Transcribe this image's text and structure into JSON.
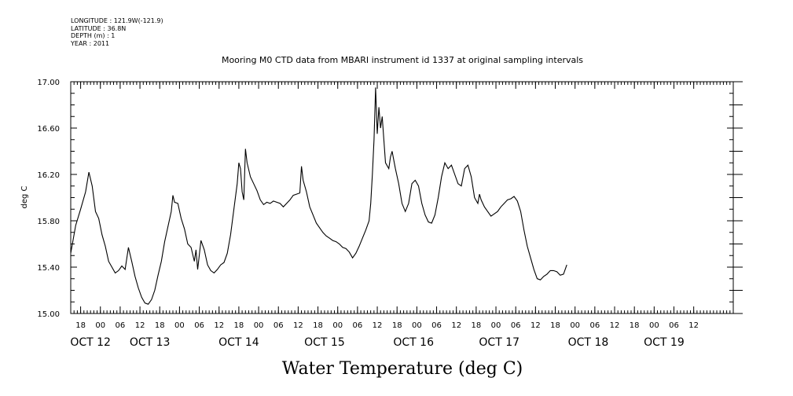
{
  "header": {
    "lines": [
      "LONGITUDE : 121.9W(-121.9)",
      "LATITUDE : 36.8N",
      "DEPTH (m) : 1",
      "YEAR : 2011"
    ]
  },
  "chart_data": {
    "type": "line",
    "title": "Mooring M0 CTD data from MBARI instrument id 1337 at original sampling intervals",
    "xlabel": "Water Temperature (deg C)",
    "ylabel": "deg C",
    "ylim": [
      15.0,
      17.0
    ],
    "yticks": [
      "15.00",
      "15.40",
      "15.80",
      "16.20",
      "16.60",
      "17.00"
    ],
    "xlim": [
      -9,
      192
    ],
    "x_unit": "hours since Oct 12 00:00, 2011",
    "hour_ticks": [
      {
        "x": -6,
        "label": "18"
      },
      {
        "x": 0,
        "label": "00"
      },
      {
        "x": 6,
        "label": "06"
      },
      {
        "x": 12,
        "label": "12"
      },
      {
        "x": 18,
        "label": "18"
      },
      {
        "x": 24,
        "label": "00"
      },
      {
        "x": 30,
        "label": "06"
      },
      {
        "x": 36,
        "label": "12"
      },
      {
        "x": 42,
        "label": "18"
      },
      {
        "x": 48,
        "label": "00"
      },
      {
        "x": 54,
        "label": "06"
      },
      {
        "x": 60,
        "label": "12"
      },
      {
        "x": 66,
        "label": "18"
      },
      {
        "x": 72,
        "label": "00"
      },
      {
        "x": 78,
        "label": "06"
      },
      {
        "x": 84,
        "label": "12"
      },
      {
        "x": 90,
        "label": "18"
      },
      {
        "x": 96,
        "label": "00"
      },
      {
        "x": 102,
        "label": "06"
      },
      {
        "x": 108,
        "label": "12"
      },
      {
        "x": 114,
        "label": "18"
      },
      {
        "x": 120,
        "label": "00"
      },
      {
        "x": 126,
        "label": "06"
      },
      {
        "x": 132,
        "label": "12"
      },
      {
        "x": 138,
        "label": "18"
      },
      {
        "x": 144,
        "label": "00"
      },
      {
        "x": 150,
        "label": "06"
      },
      {
        "x": 156,
        "label": "12"
      },
      {
        "x": 162,
        "label": "18"
      },
      {
        "x": 168,
        "label": "00"
      },
      {
        "x": 174,
        "label": "06"
      },
      {
        "x": 180,
        "label": "12"
      }
    ],
    "day_labels": [
      {
        "x": -3,
        "label": "OCT 12"
      },
      {
        "x": 15,
        "label": "OCT 13"
      },
      {
        "x": 42,
        "label": "OCT 14"
      },
      {
        "x": 68,
        "label": "OCT 15"
      },
      {
        "x": 95,
        "label": "OCT 16"
      },
      {
        "x": 121,
        "label": "OCT 17"
      },
      {
        "x": 148,
        "label": "OCT 18"
      },
      {
        "x": 171,
        "label": "OCT 19"
      }
    ],
    "series": [
      {
        "points": [
          [
            -9.0,
            15.52
          ],
          [
            -7.5,
            15.76
          ],
          [
            -6.0,
            15.9
          ],
          [
            -4.5,
            16.05
          ],
          [
            -3.5,
            16.22
          ],
          [
            -2.5,
            16.1
          ],
          [
            -1.5,
            15.88
          ],
          [
            -0.5,
            15.82
          ],
          [
            0.5,
            15.68
          ],
          [
            1.5,
            15.58
          ],
          [
            2.5,
            15.45
          ],
          [
            3.5,
            15.4
          ],
          [
            4.5,
            15.35
          ],
          [
            5.5,
            15.37
          ],
          [
            6.5,
            15.41
          ],
          [
            7.5,
            15.38
          ],
          [
            8.5,
            15.57
          ],
          [
            9.5,
            15.45
          ],
          [
            10.5,
            15.32
          ],
          [
            11.5,
            15.22
          ],
          [
            12.5,
            15.14
          ],
          [
            13.5,
            15.09
          ],
          [
            14.5,
            15.08
          ],
          [
            15.5,
            15.12
          ],
          [
            16.5,
            15.2
          ],
          [
            17.5,
            15.33
          ],
          [
            18.5,
            15.45
          ],
          [
            19.5,
            15.62
          ],
          [
            20.5,
            15.75
          ],
          [
            21.5,
            15.88
          ],
          [
            22.0,
            16.02
          ],
          [
            22.5,
            15.96
          ],
          [
            23.5,
            15.95
          ],
          [
            24.5,
            15.82
          ],
          [
            25.5,
            15.73
          ],
          [
            26.5,
            15.6
          ],
          [
            27.5,
            15.57
          ],
          [
            28.5,
            15.45
          ],
          [
            29.0,
            15.55
          ],
          [
            29.5,
            15.38
          ],
          [
            30.5,
            15.63
          ],
          [
            31.5,
            15.55
          ],
          [
            32.5,
            15.42
          ],
          [
            33.5,
            15.37
          ],
          [
            34.5,
            15.35
          ],
          [
            35.5,
            15.38
          ],
          [
            36.5,
            15.42
          ],
          [
            37.5,
            15.44
          ],
          [
            38.5,
            15.52
          ],
          [
            39.5,
            15.68
          ],
          [
            40.5,
            15.9
          ],
          [
            41.5,
            16.12
          ],
          [
            42.0,
            16.3
          ],
          [
            42.5,
            16.25
          ],
          [
            43.0,
            16.05
          ],
          [
            43.5,
            15.98
          ],
          [
            44.0,
            16.42
          ],
          [
            44.5,
            16.3
          ],
          [
            45.5,
            16.18
          ],
          [
            46.5,
            16.12
          ],
          [
            47.5,
            16.06
          ],
          [
            48.5,
            15.98
          ],
          [
            49.5,
            15.94
          ],
          [
            50.5,
            15.96
          ],
          [
            51.5,
            15.95
          ],
          [
            52.5,
            15.97
          ],
          [
            53.5,
            15.96
          ],
          [
            54.5,
            15.95
          ],
          [
            55.5,
            15.92
          ],
          [
            56.5,
            15.95
          ],
          [
            57.5,
            15.98
          ],
          [
            58.5,
            16.02
          ],
          [
            59.5,
            16.03
          ],
          [
            60.5,
            16.04
          ],
          [
            61.0,
            16.27
          ],
          [
            61.5,
            16.15
          ],
          [
            62.5,
            16.05
          ],
          [
            63.5,
            15.92
          ],
          [
            64.5,
            15.85
          ],
          [
            65.5,
            15.78
          ],
          [
            66.5,
            15.74
          ],
          [
            67.5,
            15.7
          ],
          [
            68.5,
            15.67
          ],
          [
            69.5,
            15.65
          ],
          [
            70.5,
            15.63
          ],
          [
            71.5,
            15.62
          ],
          [
            72.5,
            15.6
          ],
          [
            73.5,
            15.57
          ],
          [
            74.5,
            15.56
          ],
          [
            75.5,
            15.53
          ],
          [
            76.5,
            15.48
          ],
          [
            77.5,
            15.52
          ],
          [
            78.5,
            15.58
          ],
          [
            79.5,
            15.65
          ],
          [
            80.5,
            15.72
          ],
          [
            81.5,
            15.8
          ],
          [
            82.0,
            15.95
          ],
          [
            82.5,
            16.2
          ],
          [
            83.0,
            16.5
          ],
          [
            83.5,
            16.95
          ],
          [
            84.0,
            16.55
          ],
          [
            84.5,
            16.78
          ],
          [
            85.0,
            16.6
          ],
          [
            85.5,
            16.7
          ],
          [
            86.0,
            16.5
          ],
          [
            86.5,
            16.3
          ],
          [
            87.5,
            16.25
          ],
          [
            88.0,
            16.35
          ],
          [
            88.5,
            16.4
          ],
          [
            89.5,
            16.25
          ],
          [
            90.5,
            16.12
          ],
          [
            91.5,
            15.95
          ],
          [
            92.5,
            15.88
          ],
          [
            93.5,
            15.95
          ],
          [
            94.5,
            16.12
          ],
          [
            95.5,
            16.15
          ],
          [
            96.5,
            16.1
          ],
          [
            97.5,
            15.95
          ],
          [
            98.5,
            15.85
          ],
          [
            99.5,
            15.79
          ],
          [
            100.5,
            15.78
          ],
          [
            101.5,
            15.85
          ],
          [
            102.5,
            16.0
          ],
          [
            103.5,
            16.18
          ],
          [
            104.5,
            16.3
          ],
          [
            105.5,
            16.25
          ],
          [
            106.5,
            16.28
          ],
          [
            107.5,
            16.2
          ],
          [
            108.5,
            16.12
          ],
          [
            109.5,
            16.1
          ],
          [
            110.5,
            16.25
          ],
          [
            111.5,
            16.28
          ],
          [
            112.5,
            16.18
          ],
          [
            113.5,
            16.0
          ],
          [
            114.5,
            15.95
          ],
          [
            115.0,
            16.03
          ],
          [
            115.5,
            15.98
          ],
          [
            116.5,
            15.92
          ],
          [
            117.5,
            15.88
          ],
          [
            118.5,
            15.84
          ],
          [
            119.5,
            15.86
          ],
          [
            120.5,
            15.88
          ],
          [
            121.5,
            15.92
          ],
          [
            122.5,
            15.95
          ],
          [
            123.5,
            15.98
          ],
          [
            124.5,
            15.99
          ],
          [
            125.5,
            16.01
          ],
          [
            126.5,
            15.97
          ],
          [
            127.5,
            15.88
          ],
          [
            128.5,
            15.72
          ],
          [
            129.5,
            15.58
          ],
          [
            130.5,
            15.48
          ],
          [
            131.5,
            15.38
          ],
          [
            132.5,
            15.3
          ],
          [
            133.5,
            15.29
          ],
          [
            134.5,
            15.32
          ],
          [
            135.5,
            15.34
          ],
          [
            136.5,
            15.37
          ],
          [
            137.5,
            15.37
          ],
          [
            138.5,
            15.36
          ],
          [
            139.5,
            15.33
          ],
          [
            140.5,
            15.34
          ],
          [
            141.5,
            15.42
          ]
        ]
      }
    ]
  }
}
